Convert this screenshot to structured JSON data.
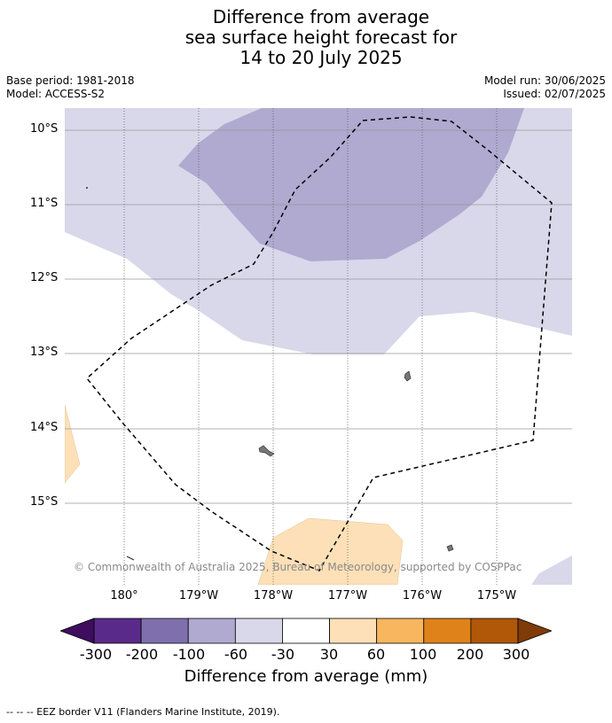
{
  "title": {
    "line1": "Difference from average",
    "line2": "sea surface height forecast for",
    "line3": "14 to 20 July 2025"
  },
  "meta": {
    "base_period": "Base period: 1981-2018",
    "model": "Model: ACCESS-S2",
    "model_run": "Model run: 30/06/2025",
    "issued": "Issued: 02/07/2025"
  },
  "axes": {
    "lat_labels": [
      "10°S",
      "11°S",
      "12°S",
      "13°S",
      "14°S",
      "15°S"
    ],
    "lon_labels": [
      "180°",
      "179°W",
      "178°W",
      "177°W",
      "176°W",
      "175°W"
    ]
  },
  "copyright": "© Commonwealth of Australia 2025, Bureau of Meteorology, supported by COSPPac",
  "colorbar": {
    "title": "Difference from average (mm)",
    "ticks": [
      "-300",
      "-200",
      "-100",
      "-60",
      "-30",
      "30",
      "60",
      "100",
      "200",
      "300"
    ],
    "colors": [
      "#3f0d5e",
      "#5a2a8a",
      "#7f70ad",
      "#b0a9d0",
      "#d8d8ea",
      "#ffffff",
      "#fde0b7",
      "#f8b65e",
      "#e0821a",
      "#b05708",
      "#7f3b08"
    ]
  },
  "footer": "--  --  -- EEZ border V11 (Flanders Marine Institute, 2019).",
  "map_colors": {
    "background": "#ffffff",
    "light_purple": "#d8d8ea",
    "mid_purple": "#b0a9d0",
    "light_orange": "#fde0b7",
    "land": "#777777"
  }
}
